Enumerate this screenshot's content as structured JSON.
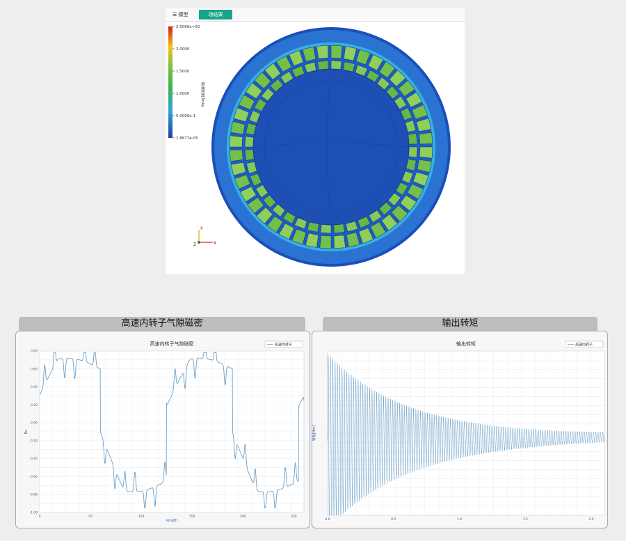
{
  "viewer": {
    "tabs": [
      {
        "icon": "model-tree-icon",
        "label": "模型"
      },
      {
        "label": "场结果"
      }
    ],
    "legend": {
      "title": "磁通密度[Tesla]",
      "ticks": [
        "2.5066e+00",
        "2.0000",
        "1.5000",
        "1.0000",
        "5.0000e-1",
        "1.8677e-05"
      ],
      "colors": [
        "#d7191c",
        "#f1c40f",
        "#7dc242",
        "#3ab54a",
        "#2fa8d8",
        "#1f3fa8"
      ]
    },
    "axes": {
      "y": "Y",
      "x": "X",
      "z": "Z"
    }
  },
  "panels": {
    "left_title": "高速内转子气隙磁密",
    "right_title": "输出转矩"
  },
  "chart_data": [
    {
      "type": "line",
      "title": "高速内转子气隙磁密",
      "xlabel": "length",
      "ylabel": "Bn",
      "legend": [
        "高速内转子"
      ],
      "legend_position": "top-right",
      "grid": true,
      "xlim": [
        0,
        290
      ],
      "ylim": [
        -1.0,
        0.8
      ],
      "x_ticks": [
        "0",
        "50",
        "100",
        "150",
        "200",
        "250"
      ],
      "y_ticks": [
        "0.80",
        "0.60",
        "0.40",
        "0.20",
        "0.00",
        "-0.20",
        "-0.40",
        "-0.60",
        "-0.80",
        "-1.00"
      ],
      "series": [
        {
          "name": "高速内转子",
          "color": "#6a9fc7",
          "profile": "square-wave-with-slot-ripple",
          "period": 145,
          "peak": 0.7,
          "trough": -0.93
        }
      ]
    },
    {
      "type": "line",
      "title": "输出转矩",
      "xlabel": "",
      "ylabel": "转矩[Nm]",
      "legend": [
        "高速内转子"
      ],
      "legend_position": "top-right",
      "grid": true,
      "x_ticks": [
        "0.0",
        "0.5",
        "1.0",
        "1.5",
        "2.0"
      ],
      "series": [
        {
          "name": "高速内转子",
          "color": "#6a9fc7",
          "profile": "decaying-oscillation"
        }
      ]
    }
  ]
}
